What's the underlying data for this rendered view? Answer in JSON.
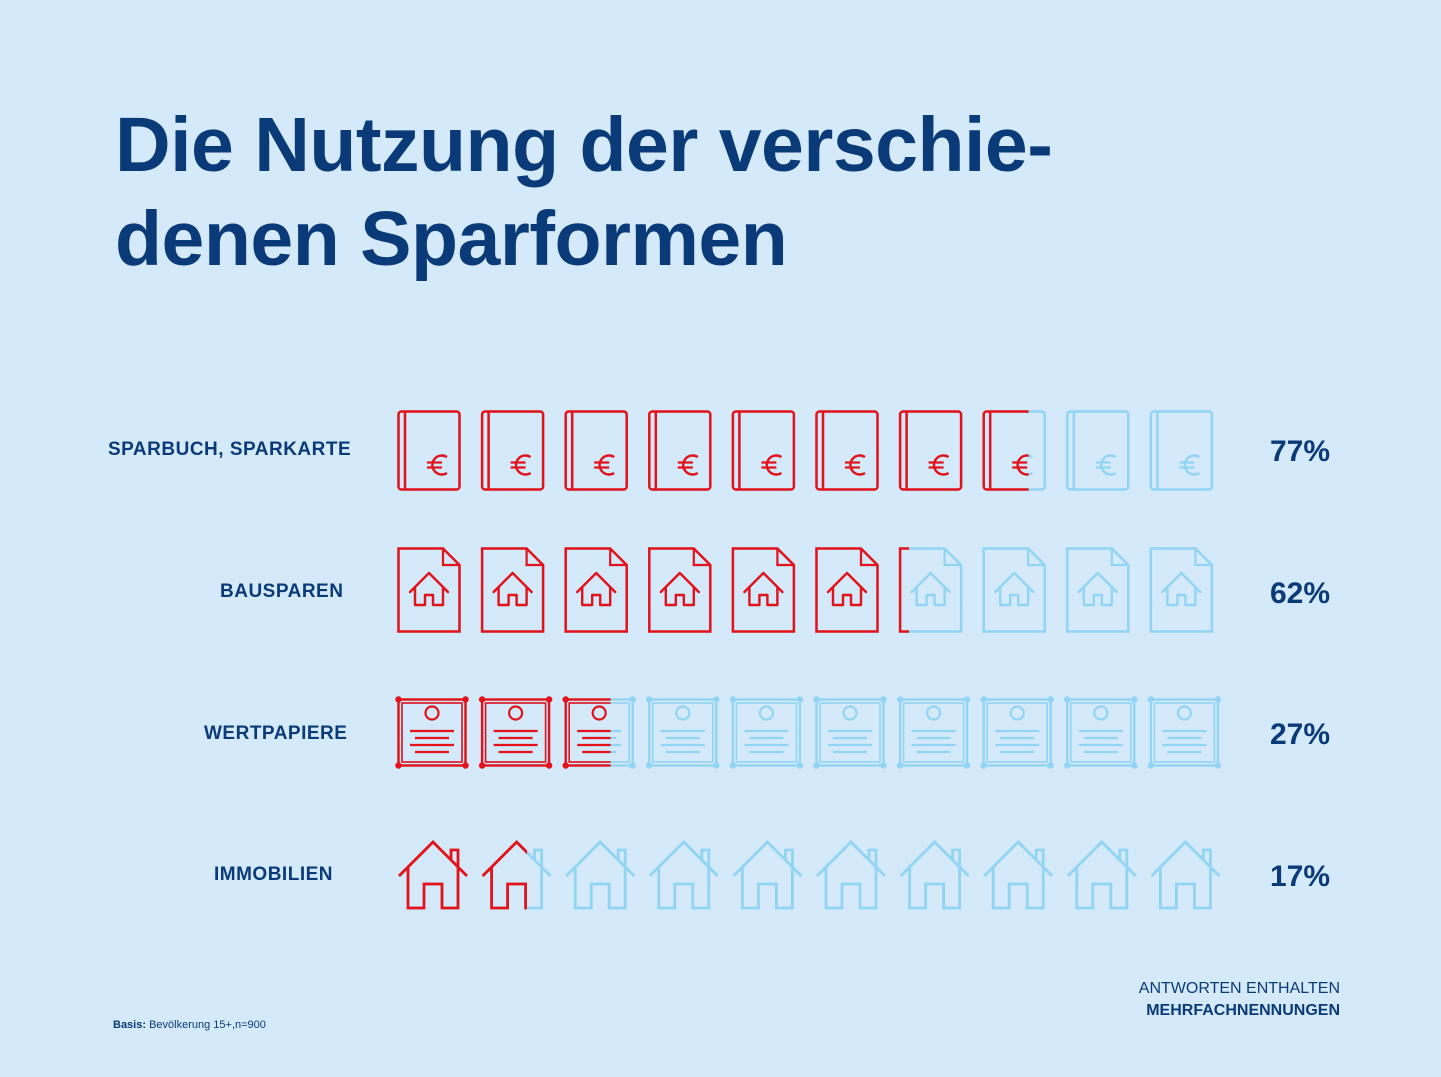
{
  "title_line1": "Die Nutzung der verschie-",
  "title_line2": "denen Sparformen",
  "colors": {
    "background": "#d4eafa",
    "text": "#0b3a78",
    "filled_icon": "#e6121a",
    "empty_icon": "#92d4f3"
  },
  "chart_data": {
    "type": "bar",
    "icons_per_row": 10,
    "categories": [
      "SPARBUCH, SPARKARTE",
      "BAUSPAREN",
      "WERTPAPIERE",
      "IMMOBILIEN"
    ],
    "values": [
      77,
      62,
      27,
      17
    ],
    "value_labels": [
      "77%",
      "62%",
      "27%",
      "17%"
    ],
    "icons": [
      "savings-book-icon",
      "house-document-icon",
      "certificate-icon",
      "house-icon"
    ],
    "xlim": [
      0,
      100
    ]
  },
  "footnote": {
    "note_line1": "ANTWORTEN ENTHALTEN",
    "note_line2": "MEHRFACHNENNUNGEN",
    "basis_label": "Basis:",
    "basis_text": "Bevölkerung 15+,n=900"
  }
}
